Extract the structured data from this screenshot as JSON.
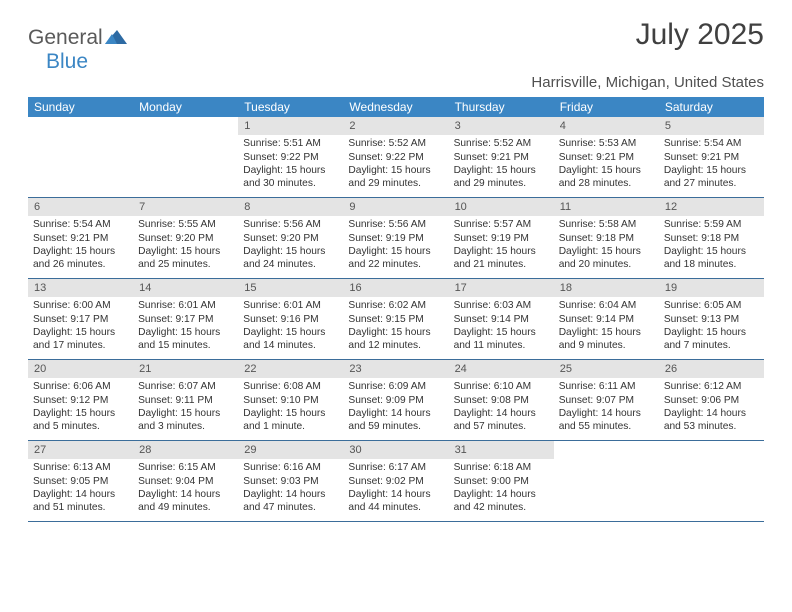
{
  "brand": {
    "word1": "General",
    "word2": "Blue"
  },
  "title": "July 2025",
  "location": "Harrisville, Michigan, United States",
  "colors": {
    "header_bg": "#3b86c4",
    "header_text": "#ffffff",
    "daynum_bg": "#e4e4e4",
    "week_border": "#3b6d9a",
    "text": "#333333"
  },
  "weekdays": [
    "Sunday",
    "Monday",
    "Tuesday",
    "Wednesday",
    "Thursday",
    "Friday",
    "Saturday"
  ],
  "weeks": [
    [
      {
        "n": "",
        "sunrise": "",
        "sunset": "",
        "daylight": ""
      },
      {
        "n": "",
        "sunrise": "",
        "sunset": "",
        "daylight": ""
      },
      {
        "n": "1",
        "sunrise": "Sunrise: 5:51 AM",
        "sunset": "Sunset: 9:22 PM",
        "daylight": "Daylight: 15 hours and 30 minutes."
      },
      {
        "n": "2",
        "sunrise": "Sunrise: 5:52 AM",
        "sunset": "Sunset: 9:22 PM",
        "daylight": "Daylight: 15 hours and 29 minutes."
      },
      {
        "n": "3",
        "sunrise": "Sunrise: 5:52 AM",
        "sunset": "Sunset: 9:21 PM",
        "daylight": "Daylight: 15 hours and 29 minutes."
      },
      {
        "n": "4",
        "sunrise": "Sunrise: 5:53 AM",
        "sunset": "Sunset: 9:21 PM",
        "daylight": "Daylight: 15 hours and 28 minutes."
      },
      {
        "n": "5",
        "sunrise": "Sunrise: 5:54 AM",
        "sunset": "Sunset: 9:21 PM",
        "daylight": "Daylight: 15 hours and 27 minutes."
      }
    ],
    [
      {
        "n": "6",
        "sunrise": "Sunrise: 5:54 AM",
        "sunset": "Sunset: 9:21 PM",
        "daylight": "Daylight: 15 hours and 26 minutes."
      },
      {
        "n": "7",
        "sunrise": "Sunrise: 5:55 AM",
        "sunset": "Sunset: 9:20 PM",
        "daylight": "Daylight: 15 hours and 25 minutes."
      },
      {
        "n": "8",
        "sunrise": "Sunrise: 5:56 AM",
        "sunset": "Sunset: 9:20 PM",
        "daylight": "Daylight: 15 hours and 24 minutes."
      },
      {
        "n": "9",
        "sunrise": "Sunrise: 5:56 AM",
        "sunset": "Sunset: 9:19 PM",
        "daylight": "Daylight: 15 hours and 22 minutes."
      },
      {
        "n": "10",
        "sunrise": "Sunrise: 5:57 AM",
        "sunset": "Sunset: 9:19 PM",
        "daylight": "Daylight: 15 hours and 21 minutes."
      },
      {
        "n": "11",
        "sunrise": "Sunrise: 5:58 AM",
        "sunset": "Sunset: 9:18 PM",
        "daylight": "Daylight: 15 hours and 20 minutes."
      },
      {
        "n": "12",
        "sunrise": "Sunrise: 5:59 AM",
        "sunset": "Sunset: 9:18 PM",
        "daylight": "Daylight: 15 hours and 18 minutes."
      }
    ],
    [
      {
        "n": "13",
        "sunrise": "Sunrise: 6:00 AM",
        "sunset": "Sunset: 9:17 PM",
        "daylight": "Daylight: 15 hours and 17 minutes."
      },
      {
        "n": "14",
        "sunrise": "Sunrise: 6:01 AM",
        "sunset": "Sunset: 9:17 PM",
        "daylight": "Daylight: 15 hours and 15 minutes."
      },
      {
        "n": "15",
        "sunrise": "Sunrise: 6:01 AM",
        "sunset": "Sunset: 9:16 PM",
        "daylight": "Daylight: 15 hours and 14 minutes."
      },
      {
        "n": "16",
        "sunrise": "Sunrise: 6:02 AM",
        "sunset": "Sunset: 9:15 PM",
        "daylight": "Daylight: 15 hours and 12 minutes."
      },
      {
        "n": "17",
        "sunrise": "Sunrise: 6:03 AM",
        "sunset": "Sunset: 9:14 PM",
        "daylight": "Daylight: 15 hours and 11 minutes."
      },
      {
        "n": "18",
        "sunrise": "Sunrise: 6:04 AM",
        "sunset": "Sunset: 9:14 PM",
        "daylight": "Daylight: 15 hours and 9 minutes."
      },
      {
        "n": "19",
        "sunrise": "Sunrise: 6:05 AM",
        "sunset": "Sunset: 9:13 PM",
        "daylight": "Daylight: 15 hours and 7 minutes."
      }
    ],
    [
      {
        "n": "20",
        "sunrise": "Sunrise: 6:06 AM",
        "sunset": "Sunset: 9:12 PM",
        "daylight": "Daylight: 15 hours and 5 minutes."
      },
      {
        "n": "21",
        "sunrise": "Sunrise: 6:07 AM",
        "sunset": "Sunset: 9:11 PM",
        "daylight": "Daylight: 15 hours and 3 minutes."
      },
      {
        "n": "22",
        "sunrise": "Sunrise: 6:08 AM",
        "sunset": "Sunset: 9:10 PM",
        "daylight": "Daylight: 15 hours and 1 minute."
      },
      {
        "n": "23",
        "sunrise": "Sunrise: 6:09 AM",
        "sunset": "Sunset: 9:09 PM",
        "daylight": "Daylight: 14 hours and 59 minutes."
      },
      {
        "n": "24",
        "sunrise": "Sunrise: 6:10 AM",
        "sunset": "Sunset: 9:08 PM",
        "daylight": "Daylight: 14 hours and 57 minutes."
      },
      {
        "n": "25",
        "sunrise": "Sunrise: 6:11 AM",
        "sunset": "Sunset: 9:07 PM",
        "daylight": "Daylight: 14 hours and 55 minutes."
      },
      {
        "n": "26",
        "sunrise": "Sunrise: 6:12 AM",
        "sunset": "Sunset: 9:06 PM",
        "daylight": "Daylight: 14 hours and 53 minutes."
      }
    ],
    [
      {
        "n": "27",
        "sunrise": "Sunrise: 6:13 AM",
        "sunset": "Sunset: 9:05 PM",
        "daylight": "Daylight: 14 hours and 51 minutes."
      },
      {
        "n": "28",
        "sunrise": "Sunrise: 6:15 AM",
        "sunset": "Sunset: 9:04 PM",
        "daylight": "Daylight: 14 hours and 49 minutes."
      },
      {
        "n": "29",
        "sunrise": "Sunrise: 6:16 AM",
        "sunset": "Sunset: 9:03 PM",
        "daylight": "Daylight: 14 hours and 47 minutes."
      },
      {
        "n": "30",
        "sunrise": "Sunrise: 6:17 AM",
        "sunset": "Sunset: 9:02 PM",
        "daylight": "Daylight: 14 hours and 44 minutes."
      },
      {
        "n": "31",
        "sunrise": "Sunrise: 6:18 AM",
        "sunset": "Sunset: 9:00 PM",
        "daylight": "Daylight: 14 hours and 42 minutes."
      },
      {
        "n": "",
        "sunrise": "",
        "sunset": "",
        "daylight": ""
      },
      {
        "n": "",
        "sunrise": "",
        "sunset": "",
        "daylight": ""
      }
    ]
  ]
}
